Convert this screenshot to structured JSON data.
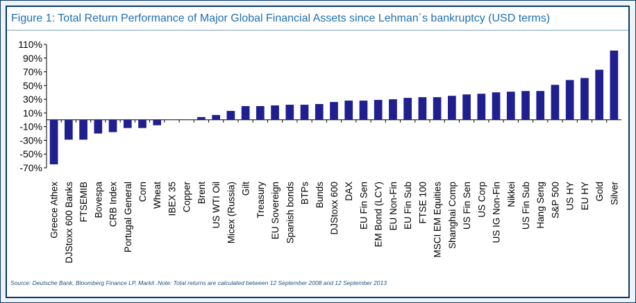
{
  "title": "Figure 1: Total Return Performance of Major Global Financial Assets since Lehman´s bankruptcy (USD terms)",
  "footnote": "Source: Deutsche Bank, Bloomberg Finance LP, Markit .Note: Total returns are calculated between 12 September 2008 and 12 September 2013",
  "colors": {
    "bar": "#1f1f8f",
    "frame": "#0a3a63",
    "title": "#1f6fb2",
    "background": "#eef3f8"
  },
  "chart_data": {
    "type": "bar",
    "categories": [
      "Greece Athex",
      "DJStoxx 600 Banks",
      "FTSEMIB",
      "Bovespa",
      "CRB Index",
      "Portugal General",
      "Corn",
      "Wheat",
      "IBEX 35",
      "Copper",
      "Brent",
      "US WTI Oil",
      "Micex (Russia)",
      "Gilt",
      "Treasury",
      "EU Sovereign",
      "Spanish bonds",
      "BTPs",
      "Bunds",
      "DJStoxx 600",
      "DAX",
      "EU Fin Sen",
      "EM Bond (LCY)",
      "EU Non-Fin",
      "EU Fin Sub",
      "FTSE 100",
      "MSCI EM Equities",
      "Shanghai Comp",
      "US Fin Sen",
      "US Corp",
      "US IG Non-Fin",
      "Nikkei",
      "US Fin Sub",
      "Hang Seng",
      "S&P 500",
      "US HY",
      "EU HY",
      "Gold",
      "Silver"
    ],
    "values": [
      -65,
      -29,
      -29,
      -20,
      -18,
      -12,
      -12,
      -8,
      0,
      0,
      4,
      7,
      13,
      20,
      20,
      21,
      22,
      22,
      23,
      26,
      28,
      28,
      29,
      30,
      32,
      33,
      33,
      35,
      37,
      38,
      40,
      41,
      42,
      42,
      51,
      58,
      61,
      73,
      101
    ],
    "yticks": [
      "110%",
      "90%",
      "70%",
      "50%",
      "30%",
      "10%",
      "-10%",
      "-30%",
      "-50%",
      "-70%"
    ],
    "ylim": [
      -70,
      110
    ],
    "xlabel": "",
    "ylabel": "",
    "grid": false
  }
}
